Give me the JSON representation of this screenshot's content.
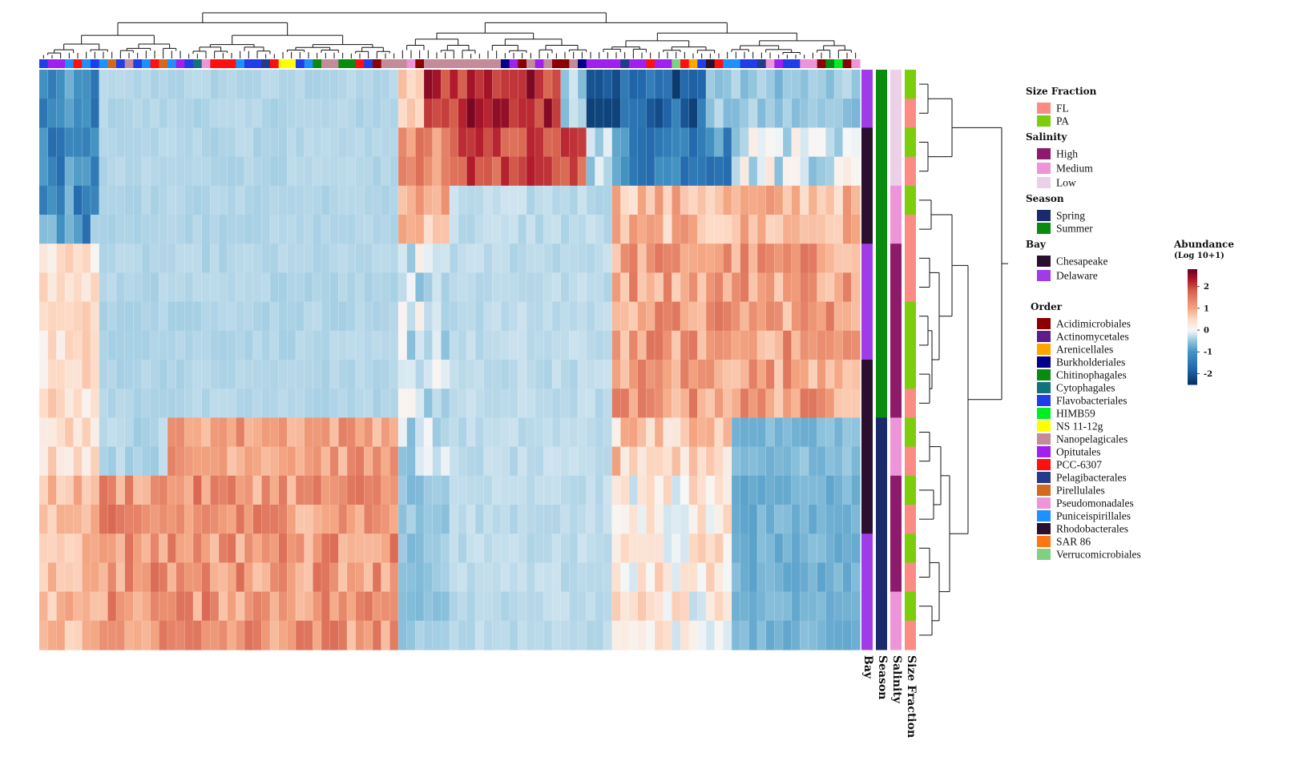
{
  "chart_data": {
    "type": "heatmap",
    "title": "",
    "n_rows": 20,
    "n_cols": 96,
    "value_range": [
      -2.5,
      2.8
    ],
    "row_blocks": [
      {
        "rows": 2,
        "segments": [
          {
            "n": 7,
            "mean": -1.2,
            "var": 0.5
          },
          {
            "n": 35,
            "mean": -0.35,
            "var": 0.06
          },
          {
            "n": 3,
            "mean": 0.6,
            "var": 0.3
          },
          {
            "n": 16,
            "mean": 2.2,
            "var": 0.5
          },
          {
            "n": 3,
            "mean": -0.3,
            "var": 0.3
          },
          {
            "n": 14,
            "mean": -1.8,
            "var": 0.6
          },
          {
            "n": 18,
            "mean": -0.5,
            "var": 0.2
          }
        ]
      },
      {
        "rows": 2,
        "segments": [
          {
            "n": 7,
            "mean": -1.2,
            "var": 0.5
          },
          {
            "n": 35,
            "mean": -0.35,
            "var": 0.06
          },
          {
            "n": 6,
            "mean": 1.3,
            "var": 0.4
          },
          {
            "n": 16,
            "mean": 1.9,
            "var": 0.4
          },
          {
            "n": 3,
            "mean": -0.3,
            "var": 0.3
          },
          {
            "n": 14,
            "mean": -1.2,
            "var": 0.6
          },
          {
            "n": 18,
            "mean": -0.1,
            "var": 0.5
          }
        ]
      },
      {
        "rows": 2,
        "segments": [
          {
            "n": 7,
            "mean": -1.0,
            "var": 0.7
          },
          {
            "n": 35,
            "mean": -0.35,
            "var": 0.05
          },
          {
            "n": 6,
            "mean": 0.9,
            "var": 0.5
          },
          {
            "n": 19,
            "mean": -0.3,
            "var": 0.1
          },
          {
            "n": 29,
            "mean": 0.8,
            "var": 0.45
          }
        ]
      },
      {
        "rows": 6,
        "segments": [
          {
            "n": 7,
            "mean": 0.4,
            "var": 0.35
          },
          {
            "n": 35,
            "mean": -0.35,
            "var": 0.06
          },
          {
            "n": 6,
            "mean": -0.2,
            "var": 0.4
          },
          {
            "n": 19,
            "mean": -0.3,
            "var": 0.08
          },
          {
            "n": 29,
            "mean": 1.1,
            "var": 0.5
          }
        ]
      },
      {
        "rows": 2,
        "segments": [
          {
            "n": 7,
            "mean": 0.5,
            "var": 0.35
          },
          {
            "n": 8,
            "mean": -0.35,
            "var": 0.1
          },
          {
            "n": 27,
            "mean": 1.1,
            "var": 0.4
          },
          {
            "n": 6,
            "mean": -0.3,
            "var": 0.3
          },
          {
            "n": 19,
            "mean": -0.3,
            "var": 0.08
          },
          {
            "n": 14,
            "mean": 0.6,
            "var": 0.5
          },
          {
            "n": 15,
            "mean": -0.6,
            "var": 0.15
          }
        ]
      },
      {
        "rows": 6,
        "segments": [
          {
            "n": 7,
            "mean": 0.8,
            "var": 0.3
          },
          {
            "n": 35,
            "mean": 1.2,
            "var": 0.5
          },
          {
            "n": 6,
            "mean": -0.5,
            "var": 0.15
          },
          {
            "n": 19,
            "mean": -0.3,
            "var": 0.08
          },
          {
            "n": 14,
            "mean": 0.2,
            "var": 0.5
          },
          {
            "n": 15,
            "mean": -0.7,
            "var": 0.15
          }
        ]
      }
    ],
    "column_order_annotation": [
      "Flavobacteriales",
      "Opitutales",
      "Opitutales",
      "Puniceispirillales",
      "PCC-6307",
      "Puniceispirillales",
      "Flavobacteriales",
      "Puniceispirillales",
      "Pirellulales",
      "Flavobacteriales",
      "Nanopelagicales",
      "Flavobacteriales",
      "Puniceispirillales",
      "PCC-6307",
      "Pirellulales",
      "Puniceispirillales",
      "Opitutales",
      "Flavobacteriales",
      "Cytophagales",
      "Pseudomonadales",
      "PCC-6307",
      "PCC-6307",
      "PCC-6307",
      "Puniceispirillales",
      "Flavobacteriales",
      "Flavobacteriales",
      "Pelagibacterales",
      "PCC-6307",
      "NS 11-12g",
      "NS 11-12g",
      "Flavobacteriales",
      "Puniceispirillales",
      "Chitinophagales",
      "Nanopelagicales",
      "Nanopelagicales",
      "Chitinophagales",
      "Chitinophagales",
      "PCC-6307",
      "Flavobacteriales",
      "Acidimicrobiales",
      "Nanopelagicales",
      "Nanopelagicales",
      "Nanopelagicales",
      "Pseudomonadales",
      "Acidimicrobiales",
      "Nanopelagicales",
      "Nanopelagicales",
      "Nanopelagicales",
      "Nanopelagicales",
      "Nanopelagicales",
      "Nanopelagicales",
      "Nanopelagicales",
      "Nanopelagicales",
      "Nanopelagicales",
      "Burkholderiales",
      "Opitutales",
      "Acidimicrobiales",
      "Nanopelagicales",
      "Opitutales",
      "Nanopelagicales",
      "Acidimicrobiales",
      "Acidimicrobiales",
      "Nanopelagicales",
      "Burkholderiales",
      "Opitutales",
      "Opitutales",
      "Opitutales",
      "Opitutales",
      "Pelagibacterales",
      "Opitutales",
      "Opitutales",
      "PCC-6307",
      "Opitutales",
      "Opitutales",
      "Verrucomicrobiales",
      "PCC-6307",
      "Arenicellales",
      "Flavobacteriales",
      "Rhodobacterales",
      "PCC-6307",
      "Puniceispirillales",
      "Puniceispirillales",
      "Flavobacteriales",
      "Flavobacteriales",
      "Pelagibacterales",
      "Pseudomonadales",
      "Opitutales",
      "Flavobacteriales",
      "Flavobacteriales",
      "Pseudomonadales",
      "Pseudomonadales",
      "Acidimicrobiales",
      "Chitinophagales",
      "HIMB59",
      "Acidimicrobiales",
      "Pseudomonadales"
    ],
    "row_annotations": {
      "Bay": [
        "Delaware",
        "Delaware",
        "Chesapeake",
        "Chesapeake",
        "Chesapeake",
        "Chesapeake",
        "Delaware",
        "Delaware",
        "Delaware",
        "Delaware",
        "Chesapeake",
        "Chesapeake",
        "Chesapeake",
        "Chesapeake",
        "Chesapeake",
        "Chesapeake",
        "Delaware",
        "Delaware",
        "Delaware",
        "Delaware"
      ],
      "Season": [
        "Summer",
        "Summer",
        "Summer",
        "Summer",
        "Summer",
        "Summer",
        "Summer",
        "Summer",
        "Summer",
        "Summer",
        "Summer",
        "Summer",
        "Spring",
        "Spring",
        "Spring",
        "Spring",
        "Spring",
        "Spring",
        "Spring",
        "Spring"
      ],
      "Salinity": [
        "Low",
        "Low",
        "Low",
        "Low",
        "Medium",
        "Medium",
        "High",
        "High",
        "High",
        "High",
        "High",
        "High",
        "Medium",
        "Medium",
        "High",
        "High",
        "High",
        "High",
        "Medium",
        "Medium"
      ],
      "Size Fraction": [
        "PA",
        "FL",
        "PA",
        "FL",
        "PA",
        "FL",
        "FL",
        "FL",
        "PA",
        "PA",
        "PA",
        "FL",
        "PA",
        "FL",
        "PA",
        "FL",
        "PA",
        "FL",
        "PA",
        "FL"
      ]
    },
    "annotation_labels": [
      "Bay",
      "Season",
      "Salinity",
      "Size Fraction"
    ],
    "colorbar": {
      "title": "Abundance",
      "subtitle": "(Log 10+1)",
      "ticks": [
        {
          "v": 2,
          "label": "2"
        },
        {
          "v": 1,
          "label": "1"
        },
        {
          "v": 0,
          "label": "0"
        },
        {
          "v": -1,
          "label": "-1"
        },
        {
          "v": -2,
          "label": "-2"
        }
      ],
      "range": [
        -2.5,
        2.8
      ]
    },
    "legends": [
      {
        "title": "Size Fraction",
        "items": [
          {
            "label": "FL",
            "color": "#fa8c84"
          },
          {
            "label": "PA",
            "color": "#7ccd0c"
          }
        ]
      },
      {
        "title": "Salinity",
        "items": [
          {
            "label": "High",
            "color": "#8e1a6b"
          },
          {
            "label": "Medium",
            "color": "#ee94d8"
          },
          {
            "label": "Low",
            "color": "#ecd0e8"
          }
        ]
      },
      {
        "title": "Season",
        "items": [
          {
            "label": "Spring",
            "color": "#1b2a6b"
          },
          {
            "label": "Summer",
            "color": "#098b0f"
          }
        ]
      },
      {
        "title": "Bay",
        "items": [
          {
            "label": "Chesapeake",
            "color": "#2a0f2e"
          },
          {
            "label": "Delaware",
            "color": "#a03be8"
          }
        ]
      },
      {
        "title": "Order",
        "items": [
          {
            "label": "Acidimicrobiales",
            "color": "#8b0000"
          },
          {
            "label": "Actinomycetales",
            "color": "#5a1d8a"
          },
          {
            "label": "Arenicellales",
            "color": "#ffa500"
          },
          {
            "label": "Burkholderiales",
            "color": "#00008b"
          },
          {
            "label": "Chitinophagales",
            "color": "#098b0f"
          },
          {
            "label": "Cytophagales",
            "color": "#11727a"
          },
          {
            "label": "Flavobacteriales",
            "color": "#1f3de8"
          },
          {
            "label": "HIMB59",
            "color": "#00ee22"
          },
          {
            "label": "NS 11-12g",
            "color": "#ffff00"
          },
          {
            "label": "Nanopelagicales",
            "color": "#c48b9a"
          },
          {
            "label": "Opitutales",
            "color": "#a020f0"
          },
          {
            "label": "PCC-6307",
            "color": "#ff1010"
          },
          {
            "label": "Pelagibacterales",
            "color": "#243a8a"
          },
          {
            "label": "Pirellulales",
            "color": "#d2691e"
          },
          {
            "label": "Pseudomonadales",
            "color": "#ee94d8"
          },
          {
            "label": "Puniceispirillales",
            "color": "#1e90ff"
          },
          {
            "label": "Rhodobacterales",
            "color": "#2a0f2e"
          },
          {
            "label": "SAR 86",
            "color": "#ff7514"
          },
          {
            "label": "Verrucomicrobiales",
            "color": "#7fd07f"
          }
        ]
      }
    ]
  }
}
